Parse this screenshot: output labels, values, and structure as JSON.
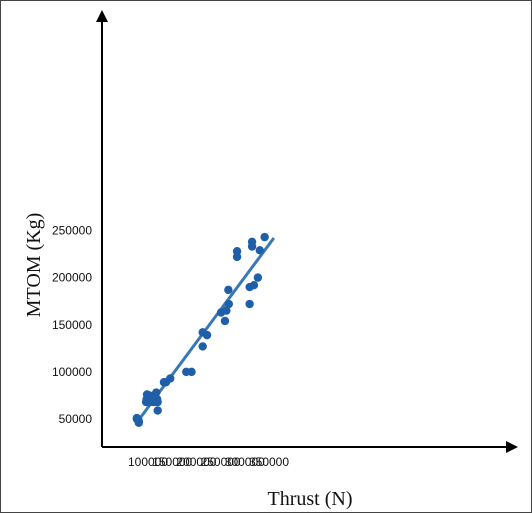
{
  "chart_data": {
    "type": "scatter",
    "title": "",
    "xlabel": "Thrust (N)",
    "ylabel": "MTOM (Kg)",
    "xlim": [
      60000,
      375000
    ],
    "ylim": [
      35000,
      260000
    ],
    "x_ticks": [
      "100000",
      "150000",
      "200000",
      "250000",
      "300000",
      "350000"
    ],
    "y_ticks": [
      "50000",
      "100000",
      "150000",
      "200000",
      "250000"
    ],
    "grid": false,
    "legend": "none",
    "point_color": "#1f5fa8",
    "line_color": "#3a78b5",
    "points": [
      [
        77000,
        51000
      ],
      [
        77000,
        50000
      ],
      [
        81000,
        48000
      ],
      [
        81000,
        46000
      ],
      [
        96000,
        68000
      ],
      [
        97000,
        71000
      ],
      [
        98000,
        76000
      ],
      [
        98000,
        68000
      ],
      [
        99000,
        70000
      ],
      [
        103000,
        68000
      ],
      [
        103000,
        75000
      ],
      [
        111000,
        68000
      ],
      [
        114000,
        70000
      ],
      [
        117000,
        78000
      ],
      [
        118000,
        68000
      ],
      [
        119000,
        71000
      ],
      [
        120000,
        59000
      ],
      [
        120000,
        68000
      ],
      [
        133000,
        89000
      ],
      [
        137000,
        89000
      ],
      [
        146000,
        93000
      ],
      [
        179000,
        100000
      ],
      [
        190000,
        100000
      ],
      [
        213000,
        142000
      ],
      [
        213000,
        127000
      ],
      [
        222000,
        139000
      ],
      [
        251000,
        163000
      ],
      [
        259000,
        154000
      ],
      [
        262000,
        165000
      ],
      [
        266000,
        187000
      ],
      [
        267000,
        172000
      ],
      [
        284000,
        228000
      ],
      [
        284000,
        222000
      ],
      [
        310000,
        190000
      ],
      [
        310000,
        172000
      ],
      [
        315000,
        238000
      ],
      [
        315000,
        233000
      ],
      [
        319000,
        192000
      ],
      [
        327000,
        200000
      ],
      [
        331000,
        229000
      ],
      [
        341000,
        243000
      ]
    ],
    "trendline": {
      "x": [
        75000,
        360000
      ],
      "y": [
        45000,
        242000
      ]
    }
  }
}
